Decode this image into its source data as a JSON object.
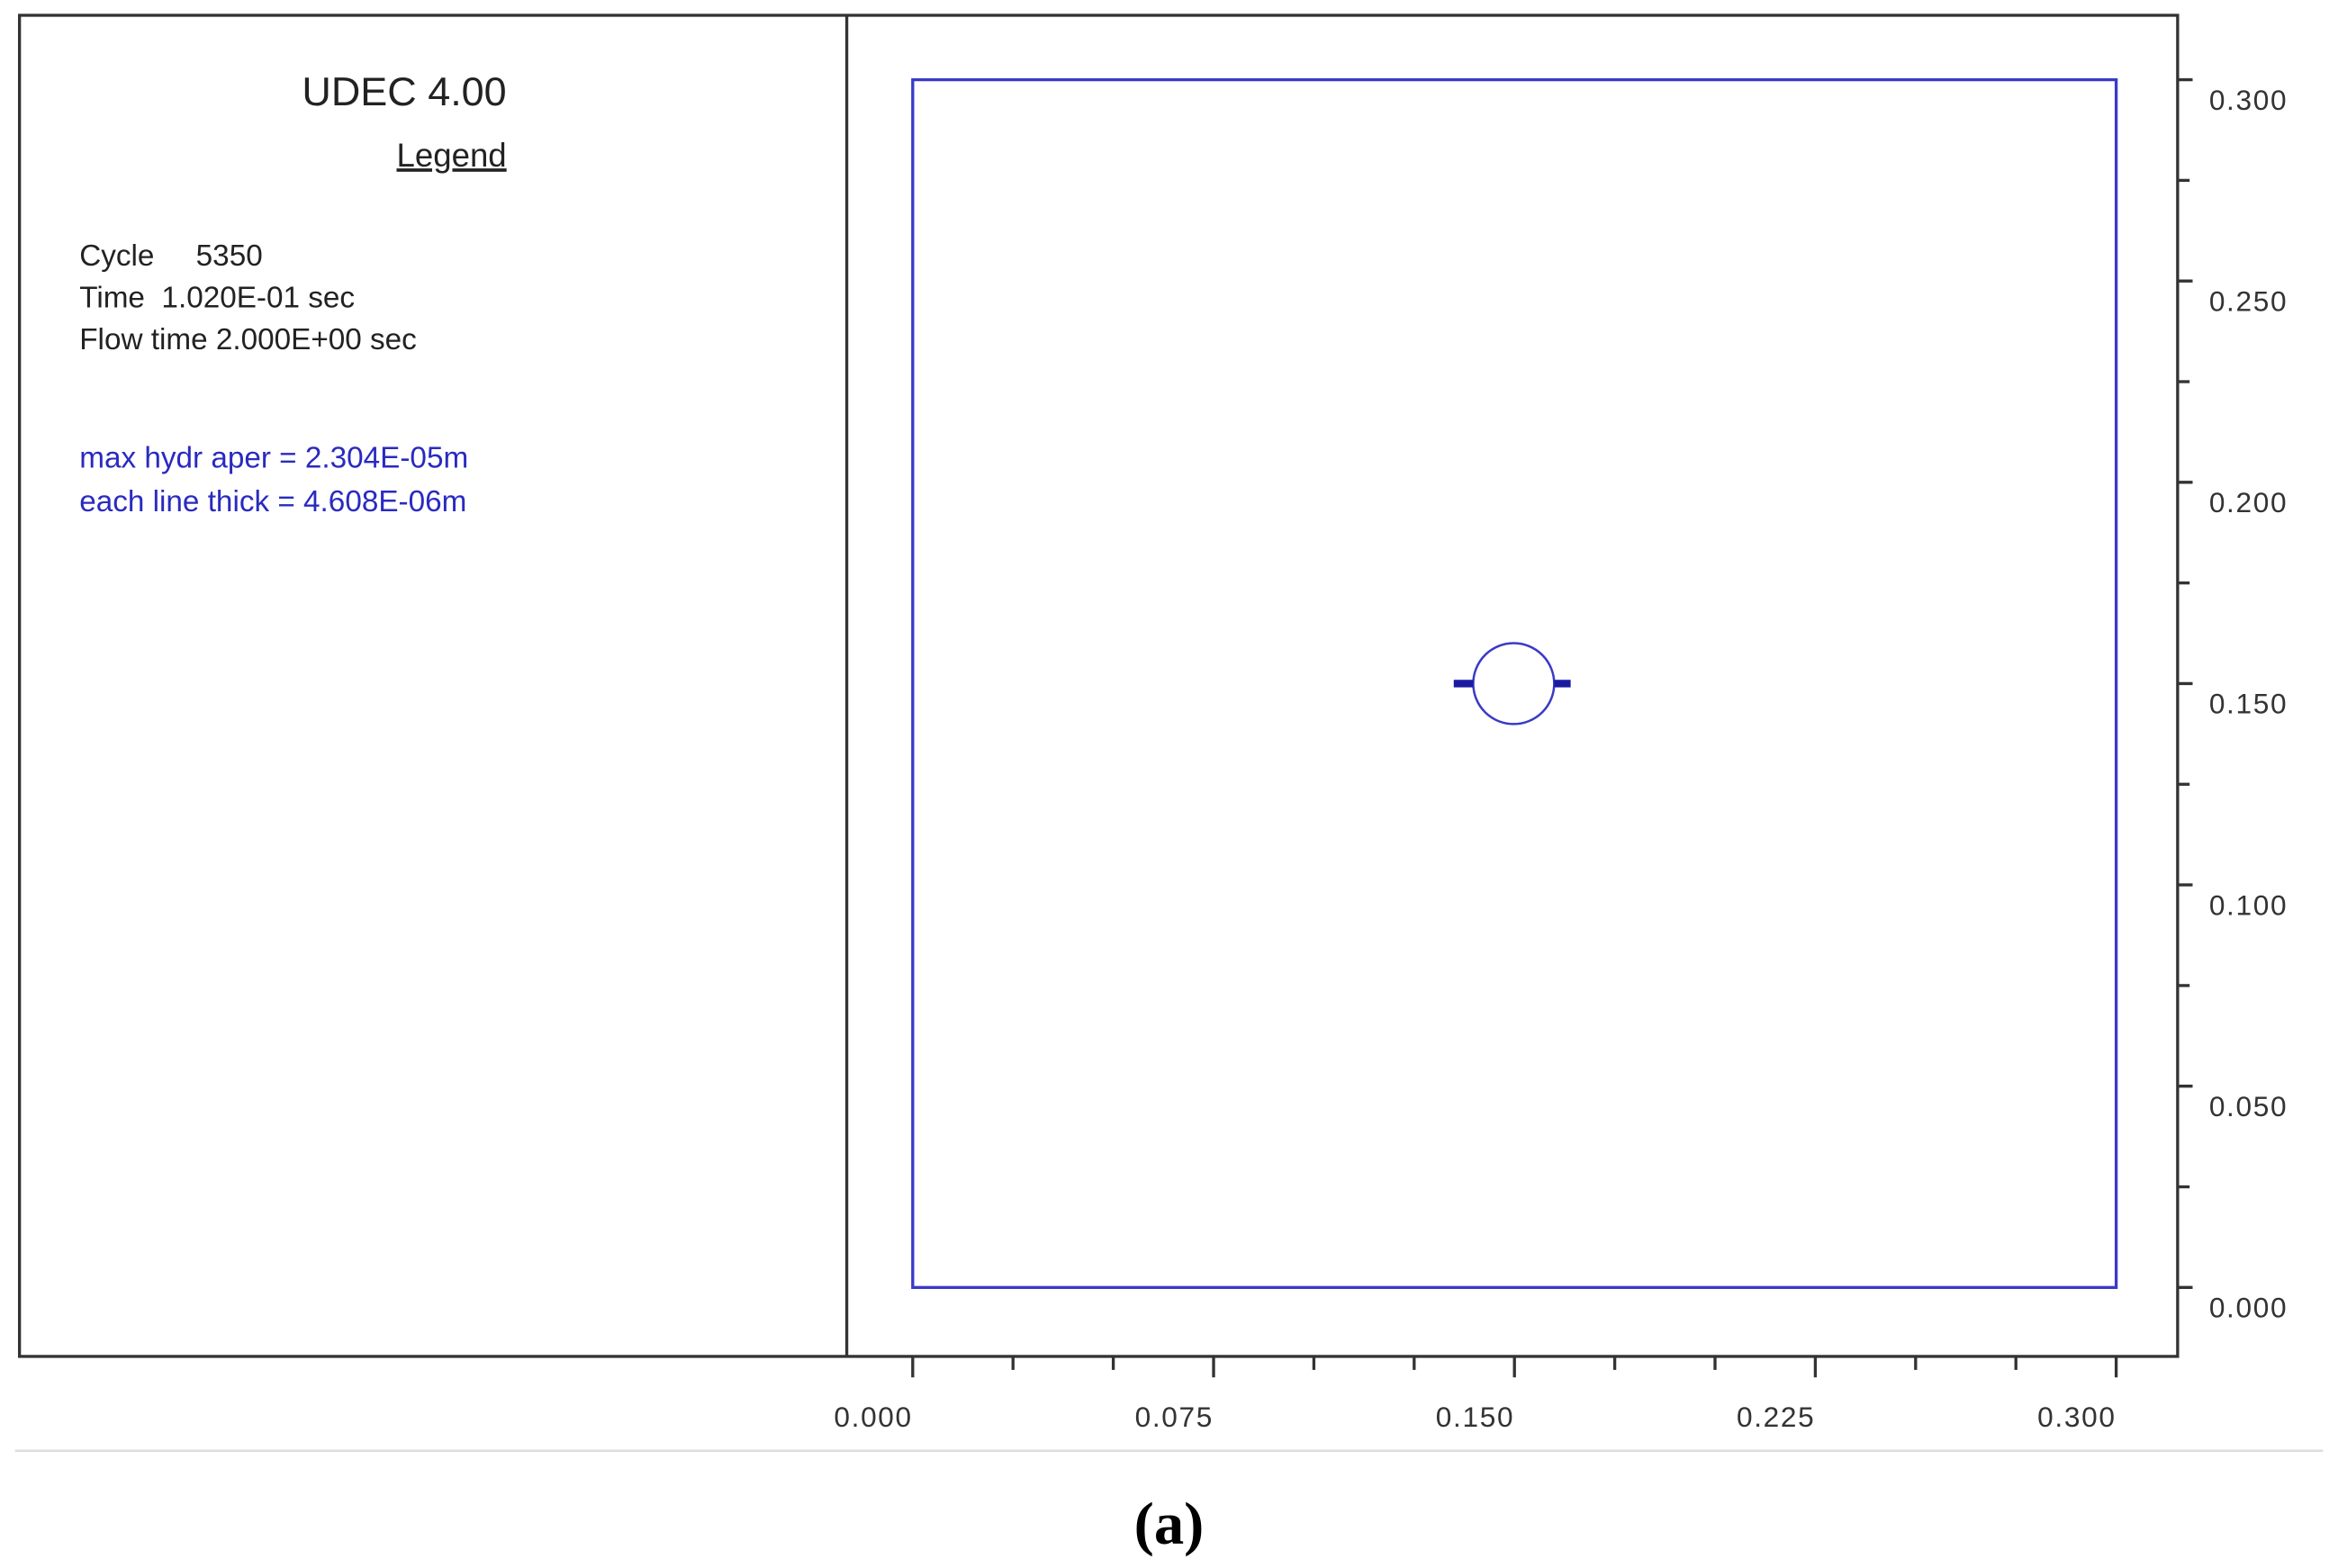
{
  "chart_data": {
    "type": "udec",
    "title": "UDEC 4.00",
    "legend_heading": "Legend",
    "info": [
      "Cycle     5350",
      "Time  1.020E-01 sec",
      "Flow time 2.000E+00 sec"
    ],
    "notes": [
      "max hydr aper = 2.304E-05m",
      "each line thick = 4.608E-06m"
    ],
    "caption": "(a)",
    "xlim": [
      0,
      0.3
    ],
    "ylim": [
      0,
      0.3
    ],
    "xticks": [
      {
        "value": 0,
        "label": "0.000"
      },
      {
        "value": 0.075,
        "label": "0.075"
      },
      {
        "value": 0.15,
        "label": "0.150"
      },
      {
        "value": 0.225,
        "label": "0.225"
      },
      {
        "value": 0.3,
        "label": "0.300"
      }
    ],
    "yticks": [
      {
        "value": 0,
        "label": "0.000"
      },
      {
        "value": 0.05,
        "label": "0.050"
      },
      {
        "value": 0.1,
        "label": "0.100"
      },
      {
        "value": 0.15,
        "label": "0.150"
      },
      {
        "value": 0.2,
        "label": "0.200"
      },
      {
        "value": 0.25,
        "label": "0.250"
      },
      {
        "value": 0.3,
        "label": "0.300"
      }
    ],
    "xminorticks": [
      0.025,
      0.05,
      0.1,
      0.125,
      0.175,
      0.2,
      0.25,
      0.275
    ],
    "yminorticks": [
      0.025,
      0.075,
      0.125,
      0.175,
      0.225,
      0.275
    ],
    "color": "#2a2ac0"
  }
}
